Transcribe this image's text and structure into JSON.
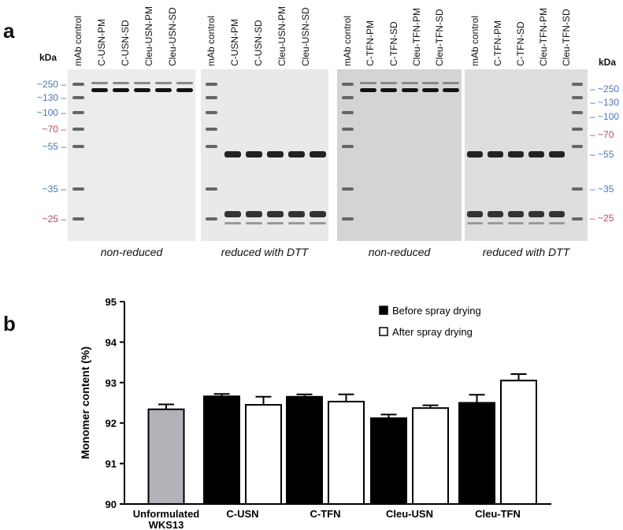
{
  "panel_a": {
    "letter": "a",
    "kda_label": "kDa",
    "marker_colors": {
      "blue": "#4a78b5",
      "red": "#c0475a"
    },
    "left_markers": [
      {
        "label": "~250",
        "color": "blue"
      },
      {
        "label": "~130",
        "color": "blue"
      },
      {
        "label": "~100",
        "color": "blue"
      },
      {
        "label": "~70",
        "color": "red"
      },
      {
        "label": "~55",
        "color": "blue"
      },
      {
        "label": "~35",
        "color": "blue"
      },
      {
        "label": "~25",
        "color": "red"
      }
    ],
    "right_markers": [
      {
        "label": "~250",
        "color": "blue"
      },
      {
        "label": "~130",
        "color": "blue"
      },
      {
        "label": "~100",
        "color": "blue"
      },
      {
        "label": "~70",
        "color": "red"
      },
      {
        "label": "~55",
        "color": "blue"
      },
      {
        "label": "~35",
        "color": "blue"
      },
      {
        "label": "~25",
        "color": "red"
      }
    ],
    "gels": [
      {
        "caption": "non-reduced",
        "lanes": [
          "mAb control",
          "C-USN-PM",
          "C-USN-SD",
          "Cleu-USN-PM",
          "Cleu-USN-SD"
        ]
      },
      {
        "caption": "reduced with DTT",
        "lanes": [
          "mAb control",
          "C-USN-PM",
          "C-USN-SD",
          "Cleu-USN-PM",
          "Cleu-USN-SD"
        ]
      },
      {
        "caption": "non-reduced",
        "lanes": [
          "mAb control",
          "C-TFN-PM",
          "C-TFN-SD",
          "Cleu-TFN-PM",
          "Cleu-TFN-SD"
        ]
      },
      {
        "caption": "reduced with DTT",
        "lanes": [
          "mAb control",
          "C-TFN-PM",
          "C-TFN-SD",
          "Cleu-TFN-PM",
          "Cleu-TFN-SD"
        ]
      }
    ]
  },
  "panel_b": {
    "letter": "b"
  },
  "chart_data": {
    "type": "bar",
    "categories": [
      "Unformulated WKS13",
      "C-USN",
      "C-TFN",
      "Cleu-USN",
      "Cleu-TFN"
    ],
    "series": [
      {
        "name": "Before spray drying",
        "color": "#000000",
        "values": [
          null,
          92.66,
          92.65,
          92.12,
          92.5
        ],
        "errors": [
          null,
          0.06,
          0.06,
          0.09,
          0.2
        ]
      },
      {
        "name": "After spray drying",
        "color": "#ffffff",
        "values": [
          null,
          92.45,
          92.53,
          92.37,
          93.05
        ],
        "errors": [
          null,
          0.2,
          0.18,
          0.07,
          0.16
        ]
      }
    ],
    "reference": {
      "category": "Unformulated WKS13",
      "value": 92.34,
      "error": 0.12,
      "color": "#b2b2b8"
    },
    "ylabel": "Monomer content (%)",
    "ylim": [
      90,
      95
    ],
    "yticks": [
      90,
      91,
      92,
      93,
      94,
      95
    ],
    "legend_position": "top-right",
    "grid": false
  }
}
